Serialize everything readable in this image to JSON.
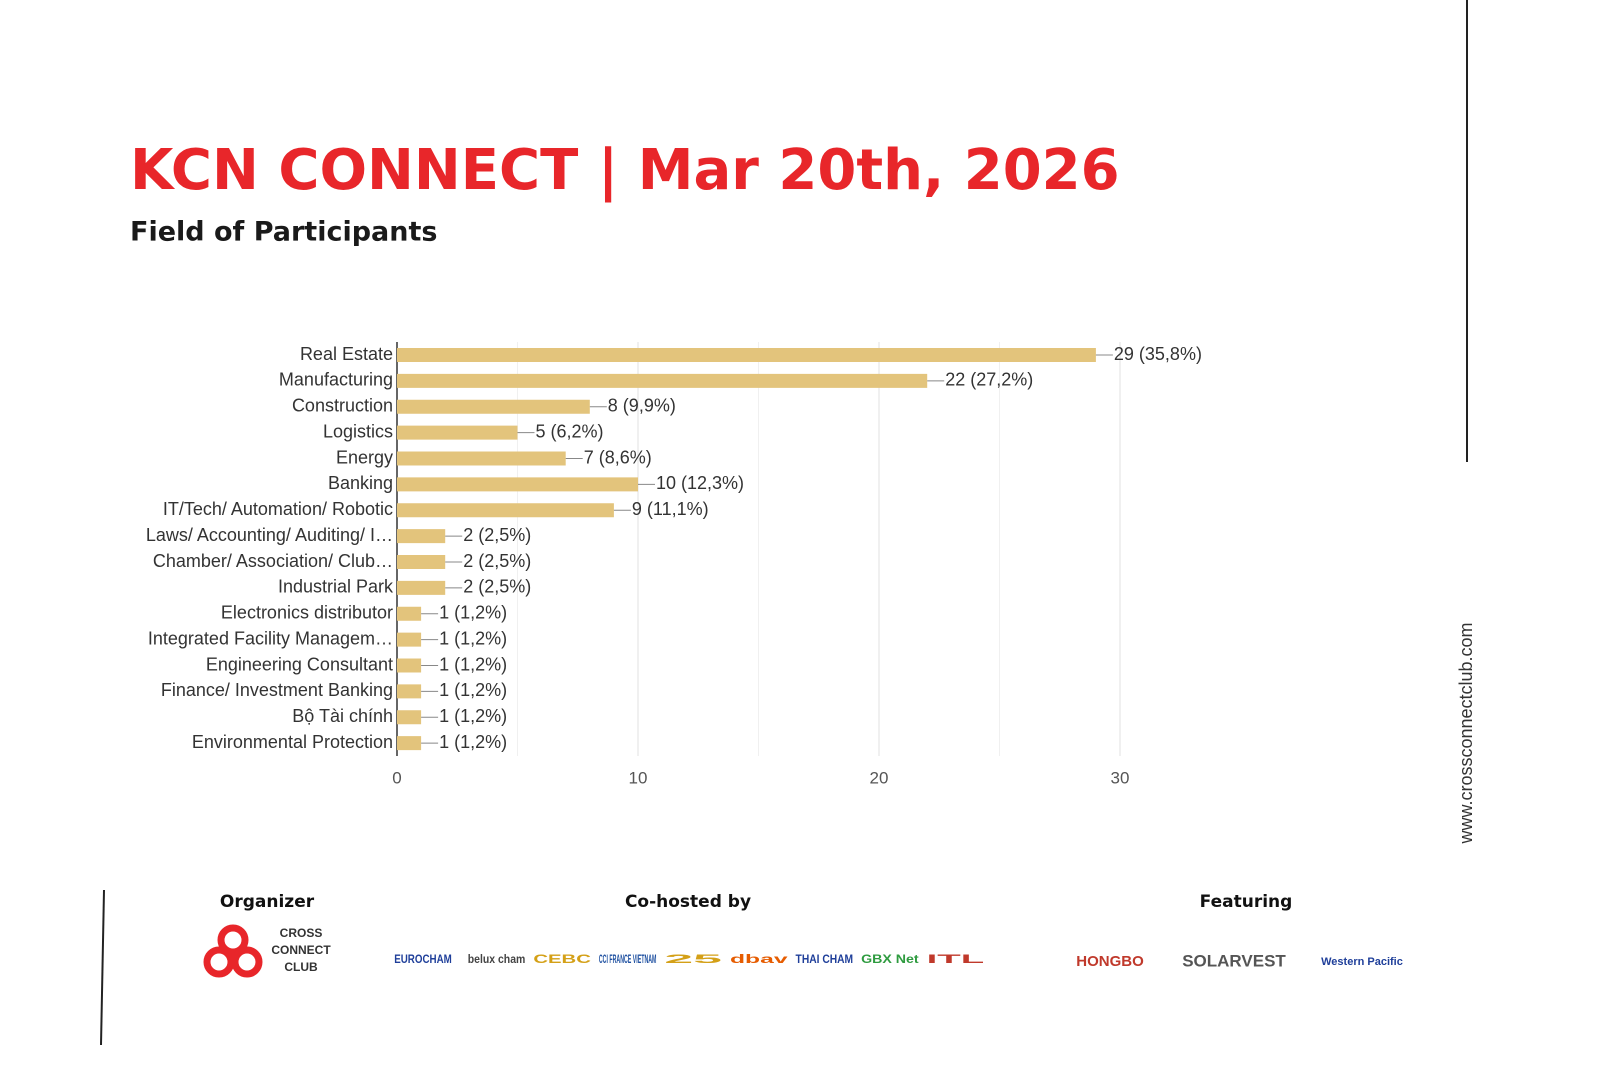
{
  "chart_data": {
    "type": "hbar",
    "title": "KCN CONNECT | Mar 20th, 2026",
    "subtitle": "Field of Participants",
    "categories": [
      "Real Estate",
      "Manufacturing",
      "Construction",
      "Logistics",
      "Energy",
      "Banking",
      "IT/Tech/ Automation/ Robotic",
      "Laws/ Accounting/ Auditing/ I…",
      "Chamber/ Association/ Club…",
      "Industrial Park",
      "Electronics distributor",
      "Integrated Facility Managem…",
      "Engineering Consultant",
      "Finance/ Investment Banking",
      "Bộ Tài chính",
      "Environmental Protection"
    ],
    "values": [
      29,
      22,
      8,
      5,
      7,
      10,
      9,
      2,
      2,
      2,
      1,
      1,
      1,
      1,
      1,
      1
    ],
    "value_labels": [
      "29 (35,8%)",
      "22 (27,2%)",
      "8 (9,9%)",
      "5 (6,2%)",
      "7 (8,6%)",
      "10 (12,3%)",
      "9 (11,1%)",
      "2 (2,5%)",
      "2 (2,5%)",
      "2 (2,5%)",
      "1 (1,2%)",
      "1 (1,2%)",
      "1 (1,2%)",
      "1 (1,2%)",
      "1 (1,2%)",
      "1 (1,2%)"
    ],
    "color": "#e3c47c",
    "xlim": [
      0,
      30
    ],
    "xticks": [
      0,
      10,
      20,
      30
    ],
    "minor_gridlines": [
      5,
      15,
      25
    ],
    "grid": true
  },
  "footer": {
    "organizer": {
      "heading": "Organizer",
      "logo": [
        "CROSS",
        "CONNECT",
        "CLUB"
      ]
    },
    "cohosts": {
      "heading": "Co-hosted by",
      "logos": [
        "EUROCHAM",
        "belux cham",
        "CEBC",
        "CCI FRANCE VIETNAM",
        "25",
        "dbav",
        "THAI CHAM",
        "GBX Net",
        "ITL"
      ]
    },
    "featuring": {
      "heading": "Featuring",
      "logos": [
        "HONGBO",
        "SOLARVEST",
        "Western Pacific"
      ]
    }
  },
  "website": "www.crossconnectclub.com"
}
